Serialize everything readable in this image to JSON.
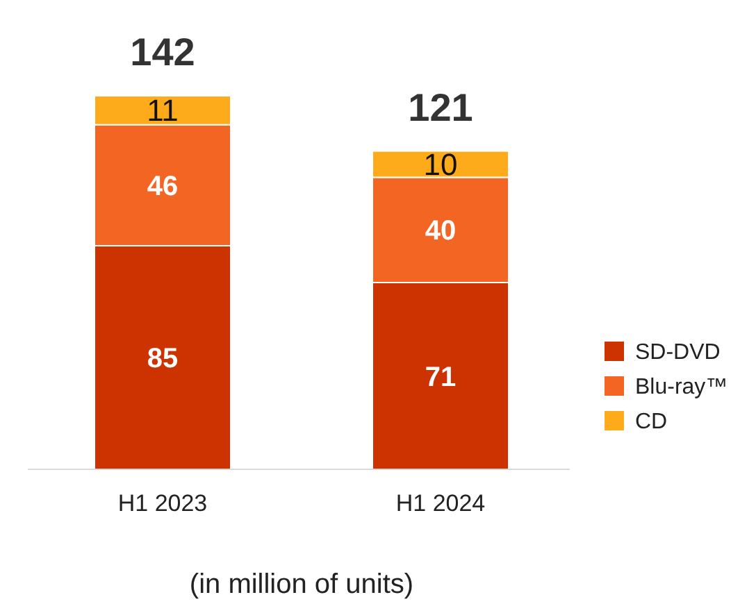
{
  "chart_data": {
    "type": "bar",
    "stacked": true,
    "categories": [
      "H1 2023",
      "H1 2024"
    ],
    "series": [
      {
        "name": "SD-DVD",
        "color": "#cc3300",
        "values": [
          85,
          71
        ]
      },
      {
        "name": "Blu-ray™",
        "color": "#f26522",
        "values": [
          46,
          40
        ]
      },
      {
        "name": "CD",
        "color": "#fdab1a",
        "values": [
          11,
          10
        ]
      }
    ],
    "data_labels": true,
    "totals": [
      "142",
      "121"
    ],
    "legend": "right",
    "annotations": [
      "(in million of units)"
    ]
  }
}
